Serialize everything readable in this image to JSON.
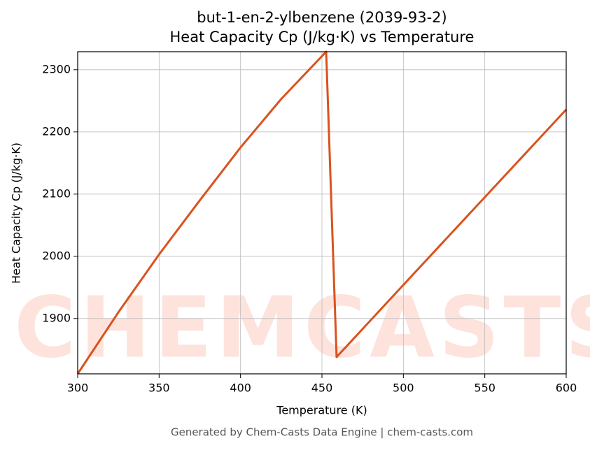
{
  "chart_data": {
    "type": "line",
    "title": "but-1-en-2-ylbenzene (2039-93-2)",
    "subtitle": "Heat Capacity Cp (J/kg·K) vs Temperature",
    "x_label": "Temperature (K)",
    "y_label": "Heat Capacity Cp (J/kg·K)",
    "footer": "Generated by Chem-Casts Data Engine | chem-casts.com",
    "watermark": "CHEMCASTS",
    "x": [
      300,
      325,
      350,
      375,
      400,
      425,
      452.6,
      459,
      500,
      550,
      600
    ],
    "series": [
      {
        "name": "Cp",
        "color": "#d9531e",
        "values": [
          1811,
          1910,
          2003,
          2090,
          2175,
          2253,
          2329,
          1838,
          1954,
          2095,
          2236
        ]
      }
    ],
    "xlim": [
      300,
      600
    ],
    "ylim": [
      1811,
      2329
    ],
    "xticks": [
      300,
      350,
      400,
      450,
      500,
      550,
      600
    ],
    "yticks": [
      1900,
      2000,
      2100,
      2200,
      2300
    ],
    "grid": true
  }
}
